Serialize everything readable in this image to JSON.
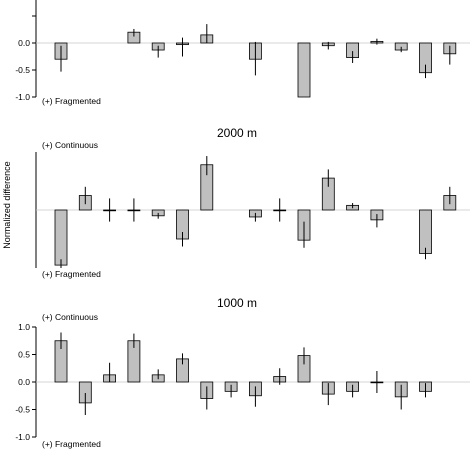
{
  "chart_data": [
    {
      "type": "bar",
      "title": "",
      "ylabel": "",
      "ylim": [
        -1.0,
        0.05
      ],
      "yticks": [
        "0.0",
        "-0.5",
        "-1.0"
      ],
      "annotations": {
        "top": "",
        "bottom": "(+) Fragmented"
      },
      "values": [
        -0.3,
        null,
        null,
        0.2,
        -0.13,
        -0.03,
        0.15,
        null,
        -0.3,
        null,
        -1.0,
        -0.05,
        -0.27,
        0.03,
        -0.13,
        -0.55,
        -0.2
      ],
      "err_low": [
        -0.53,
        null,
        null,
        0.12,
        -0.27,
        -0.25,
        0.0,
        null,
        -0.6,
        null,
        null,
        -0.12,
        -0.37,
        -0.03,
        -0.17,
        -0.65,
        -0.4
      ],
      "err_high": [
        -0.05,
        null,
        null,
        0.26,
        -0.05,
        0.1,
        0.35,
        null,
        0.02,
        null,
        null,
        0.02,
        -0.15,
        0.08,
        -0.07,
        -0.4,
        -0.05
      ]
    },
    {
      "type": "bar",
      "title": "2000 m",
      "ylabel": "Normalized difference",
      "annotations": {
        "top": "(+) Continuous",
        "bottom": "(+) Fragmented"
      },
      "values": [
        -0.95,
        0.25,
        0.0,
        0.0,
        -0.1,
        -0.5,
        0.78,
        null,
        -0.12,
        0.0,
        -0.52,
        0.55,
        0.08,
        -0.17,
        null,
        -0.75,
        0.25
      ],
      "err_low": [
        -1.0,
        0.1,
        -0.2,
        -0.2,
        -0.15,
        -0.63,
        0.6,
        null,
        -0.2,
        -0.2,
        -0.65,
        0.4,
        0.03,
        -0.3,
        null,
        -0.85,
        0.1
      ],
      "err_high": [
        -0.85,
        0.4,
        0.2,
        0.2,
        -0.05,
        -0.38,
        0.93,
        null,
        -0.05,
        0.2,
        -0.2,
        0.7,
        0.12,
        -0.07,
        null,
        -0.65,
        0.4
      ]
    },
    {
      "type": "bar",
      "title": "1000 m",
      "ylabel": "",
      "ylim": [
        -1.0,
        1.0
      ],
      "yticks": [
        "1.0",
        "0.5",
        "0.0",
        "-0.5",
        "-1.0"
      ],
      "annotations": {
        "top": "(+) Continuous",
        "bottom": "(+) Fragmented"
      },
      "values": [
        0.75,
        -0.38,
        0.13,
        0.75,
        0.13,
        0.42,
        -0.3,
        -0.17,
        -0.25,
        0.1,
        0.48,
        -0.22,
        -0.17,
        0.0,
        -0.27,
        -0.17,
        null
      ],
      "err_low": [
        0.6,
        -0.6,
        0.0,
        0.62,
        0.05,
        0.32,
        -0.5,
        -0.28,
        -0.45,
        -0.05,
        0.32,
        -0.42,
        -0.28,
        -0.2,
        -0.5,
        -0.28,
        null
      ],
      "err_high": [
        0.9,
        -0.2,
        0.35,
        0.88,
        0.23,
        0.52,
        -0.08,
        -0.05,
        -0.08,
        0.25,
        0.63,
        -0.02,
        -0.05,
        0.2,
        -0.05,
        -0.02,
        null
      ]
    }
  ]
}
